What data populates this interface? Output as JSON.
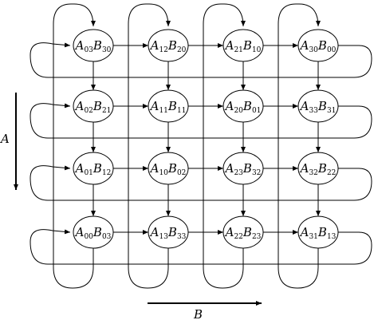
{
  "axis": {
    "vertical_label": "A",
    "horizontal_label": "B"
  },
  "grid": [
    [
      {
        "a": "A",
        "a_sub": "03",
        "b": "B",
        "b_sub": "30"
      },
      {
        "a": "A",
        "a_sub": "12",
        "b": "B",
        "b_sub": "20"
      },
      {
        "a": "A",
        "a_sub": "21",
        "b": "B",
        "b_sub": "10"
      },
      {
        "a": "A",
        "a_sub": "30",
        "b": "B",
        "b_sub": "00"
      }
    ],
    [
      {
        "a": "A",
        "a_sub": "02",
        "b": "B",
        "b_sub": "21"
      },
      {
        "a": "A",
        "a_sub": "11",
        "b": "B",
        "b_sub": "11"
      },
      {
        "a": "A",
        "a_sub": "20",
        "b": "B",
        "b_sub": "01"
      },
      {
        "a": "A",
        "a_sub": "33",
        "b": "B",
        "b_sub": "31"
      }
    ],
    [
      {
        "a": "A",
        "a_sub": "01",
        "b": "B",
        "b_sub": "12"
      },
      {
        "a": "A",
        "a_sub": "10",
        "b": "B",
        "b_sub": "02"
      },
      {
        "a": "A",
        "a_sub": "23",
        "b": "B",
        "b_sub": "32"
      },
      {
        "a": "A",
        "a_sub": "32",
        "b": "B",
        "b_sub": "22"
      }
    ],
    [
      {
        "a": "A",
        "a_sub": "00",
        "b": "B",
        "b_sub": "03"
      },
      {
        "a": "A",
        "a_sub": "13",
        "b": "B",
        "b_sub": "33"
      },
      {
        "a": "A",
        "a_sub": "22",
        "b": "B",
        "b_sub": "23"
      },
      {
        "a": "A",
        "a_sub": "31",
        "b": "B",
        "b_sub": "13"
      }
    ]
  ]
}
